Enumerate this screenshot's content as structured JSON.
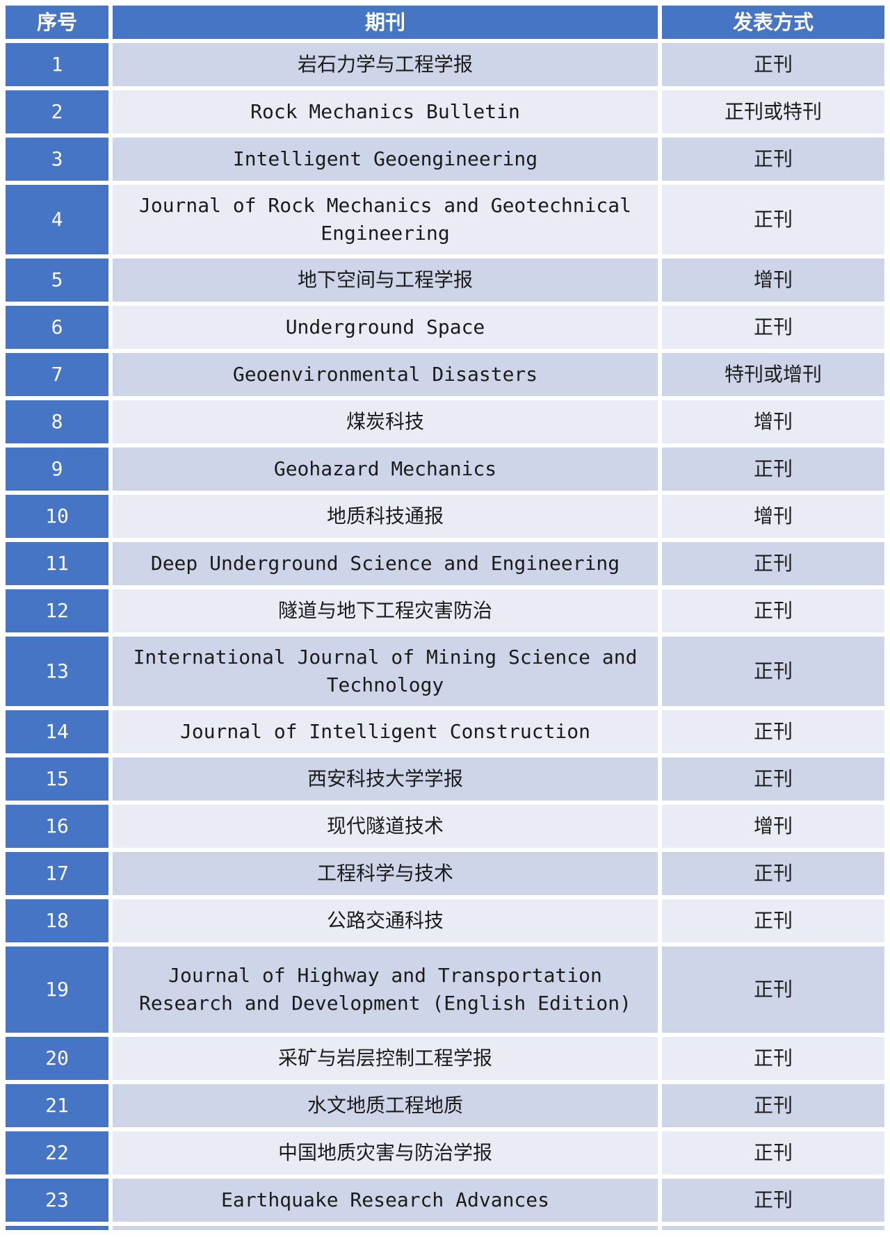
{
  "colors": {
    "header_blue": "#4575c4",
    "band_dark": "#cfd5e9",
    "band_light": "#e9ebf5",
    "text_black": "#1b1b1b",
    "grid_white": "#ffffff"
  },
  "table": {
    "headers": [
      "序号",
      "期刊",
      "发表方式"
    ],
    "rows": [
      {
        "num": "1",
        "journal": "岩石力学与工程学报",
        "mode": "正刊"
      },
      {
        "num": "2",
        "journal": "Rock Mechanics Bulletin",
        "mode": "正刊或特刊"
      },
      {
        "num": "3",
        "journal": "Intelligent Geoengineering",
        "mode": "正刊"
      },
      {
        "num": "4",
        "journal": "Journal of Rock Mechanics and Geotechnical\nEngineering",
        "mode": "正刊"
      },
      {
        "num": "5",
        "journal": "地下空间与工程学报",
        "mode": "增刊"
      },
      {
        "num": "6",
        "journal": "Underground Space",
        "mode": "正刊"
      },
      {
        "num": "7",
        "journal": "Geoenvironmental Disasters",
        "mode": "特刊或增刊"
      },
      {
        "num": "8",
        "journal": "煤炭科技",
        "mode": "增刊"
      },
      {
        "num": "9",
        "journal": "Geohazard Mechanics",
        "mode": "正刊"
      },
      {
        "num": "10",
        "journal": "地质科技通报",
        "mode": "增刊"
      },
      {
        "num": "11",
        "journal": "Deep Underground Science and Engineering",
        "mode": "正刊"
      },
      {
        "num": "12",
        "journal": "隧道与地下工程灾害防治",
        "mode": "正刊"
      },
      {
        "num": "13",
        "journal": "International Journal of Mining Science and\nTechnology",
        "mode": "正刊"
      },
      {
        "num": "14",
        "journal": "Journal of Intelligent Construction",
        "mode": "正刊"
      },
      {
        "num": "15",
        "journal": "西安科技大学学报",
        "mode": "正刊"
      },
      {
        "num": "16",
        "journal": "现代隧道技术",
        "mode": "增刊"
      },
      {
        "num": "17",
        "journal": "工程科学与技术",
        "mode": "正刊"
      },
      {
        "num": "18",
        "journal": "公路交通科技",
        "mode": "正刊"
      },
      {
        "num": "19",
        "journal": "Journal of Highway and Transportation\nResearch and Development (English Edition)",
        "mode": "正刊"
      },
      {
        "num": "20",
        "journal": "采矿与岩层控制工程学报",
        "mode": "正刊"
      },
      {
        "num": "21",
        "journal": "水文地质工程地质",
        "mode": "正刊"
      },
      {
        "num": "22",
        "journal": "中国地质灾害与防治学报",
        "mode": "正刊"
      },
      {
        "num": "23",
        "journal": "Earthquake Research Advances",
        "mode": "正刊"
      }
    ]
  }
}
